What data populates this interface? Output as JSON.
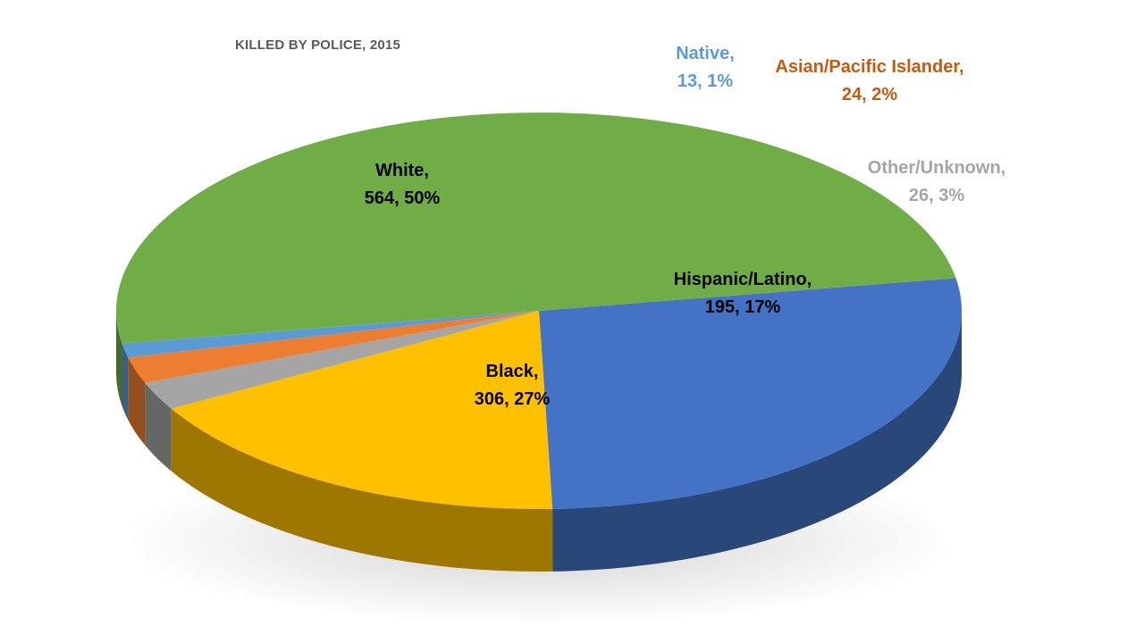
{
  "chart_data": {
    "type": "pie",
    "title": "KILLED BY POLICE, 2015",
    "slices": [
      {
        "name": "Black",
        "value": 306,
        "percent": "27%",
        "color": "#4472C4",
        "label_color": "#000000"
      },
      {
        "name": "Hispanic/Latino",
        "value": 195,
        "percent": "17%",
        "color": "#FFC000",
        "label_color": "#000000"
      },
      {
        "name": "Other/Unknown",
        "value": 26,
        "percent": "3%",
        "color": "#A5A5A5",
        "label_color": "#A5A5A5"
      },
      {
        "name": "Asian/Pacific Islander",
        "value": 24,
        "percent": "2%",
        "color": "#ED7D31",
        "label_color": "#C55A11"
      },
      {
        "name": "Native",
        "value": 13,
        "percent": "1%",
        "color": "#5B9BD5",
        "label_color": "#5B9BD5"
      },
      {
        "name": "White",
        "value": 564,
        "percent": "50%",
        "color": "#70AD47",
        "label_color": "#000000"
      }
    ],
    "labels": {
      "white": [
        "White,",
        "564, 50%"
      ],
      "black": [
        "Black,",
        "306, 27%"
      ],
      "hispanic": [
        "Hispanic/Latino,",
        "195, 17%"
      ],
      "other": [
        "Other/Unknown,",
        "26, 3%"
      ],
      "asian": [
        "Asian/Pacific Islander,",
        "24, 2%"
      ],
      "native": [
        "Native,",
        "13, 1%"
      ]
    }
  }
}
